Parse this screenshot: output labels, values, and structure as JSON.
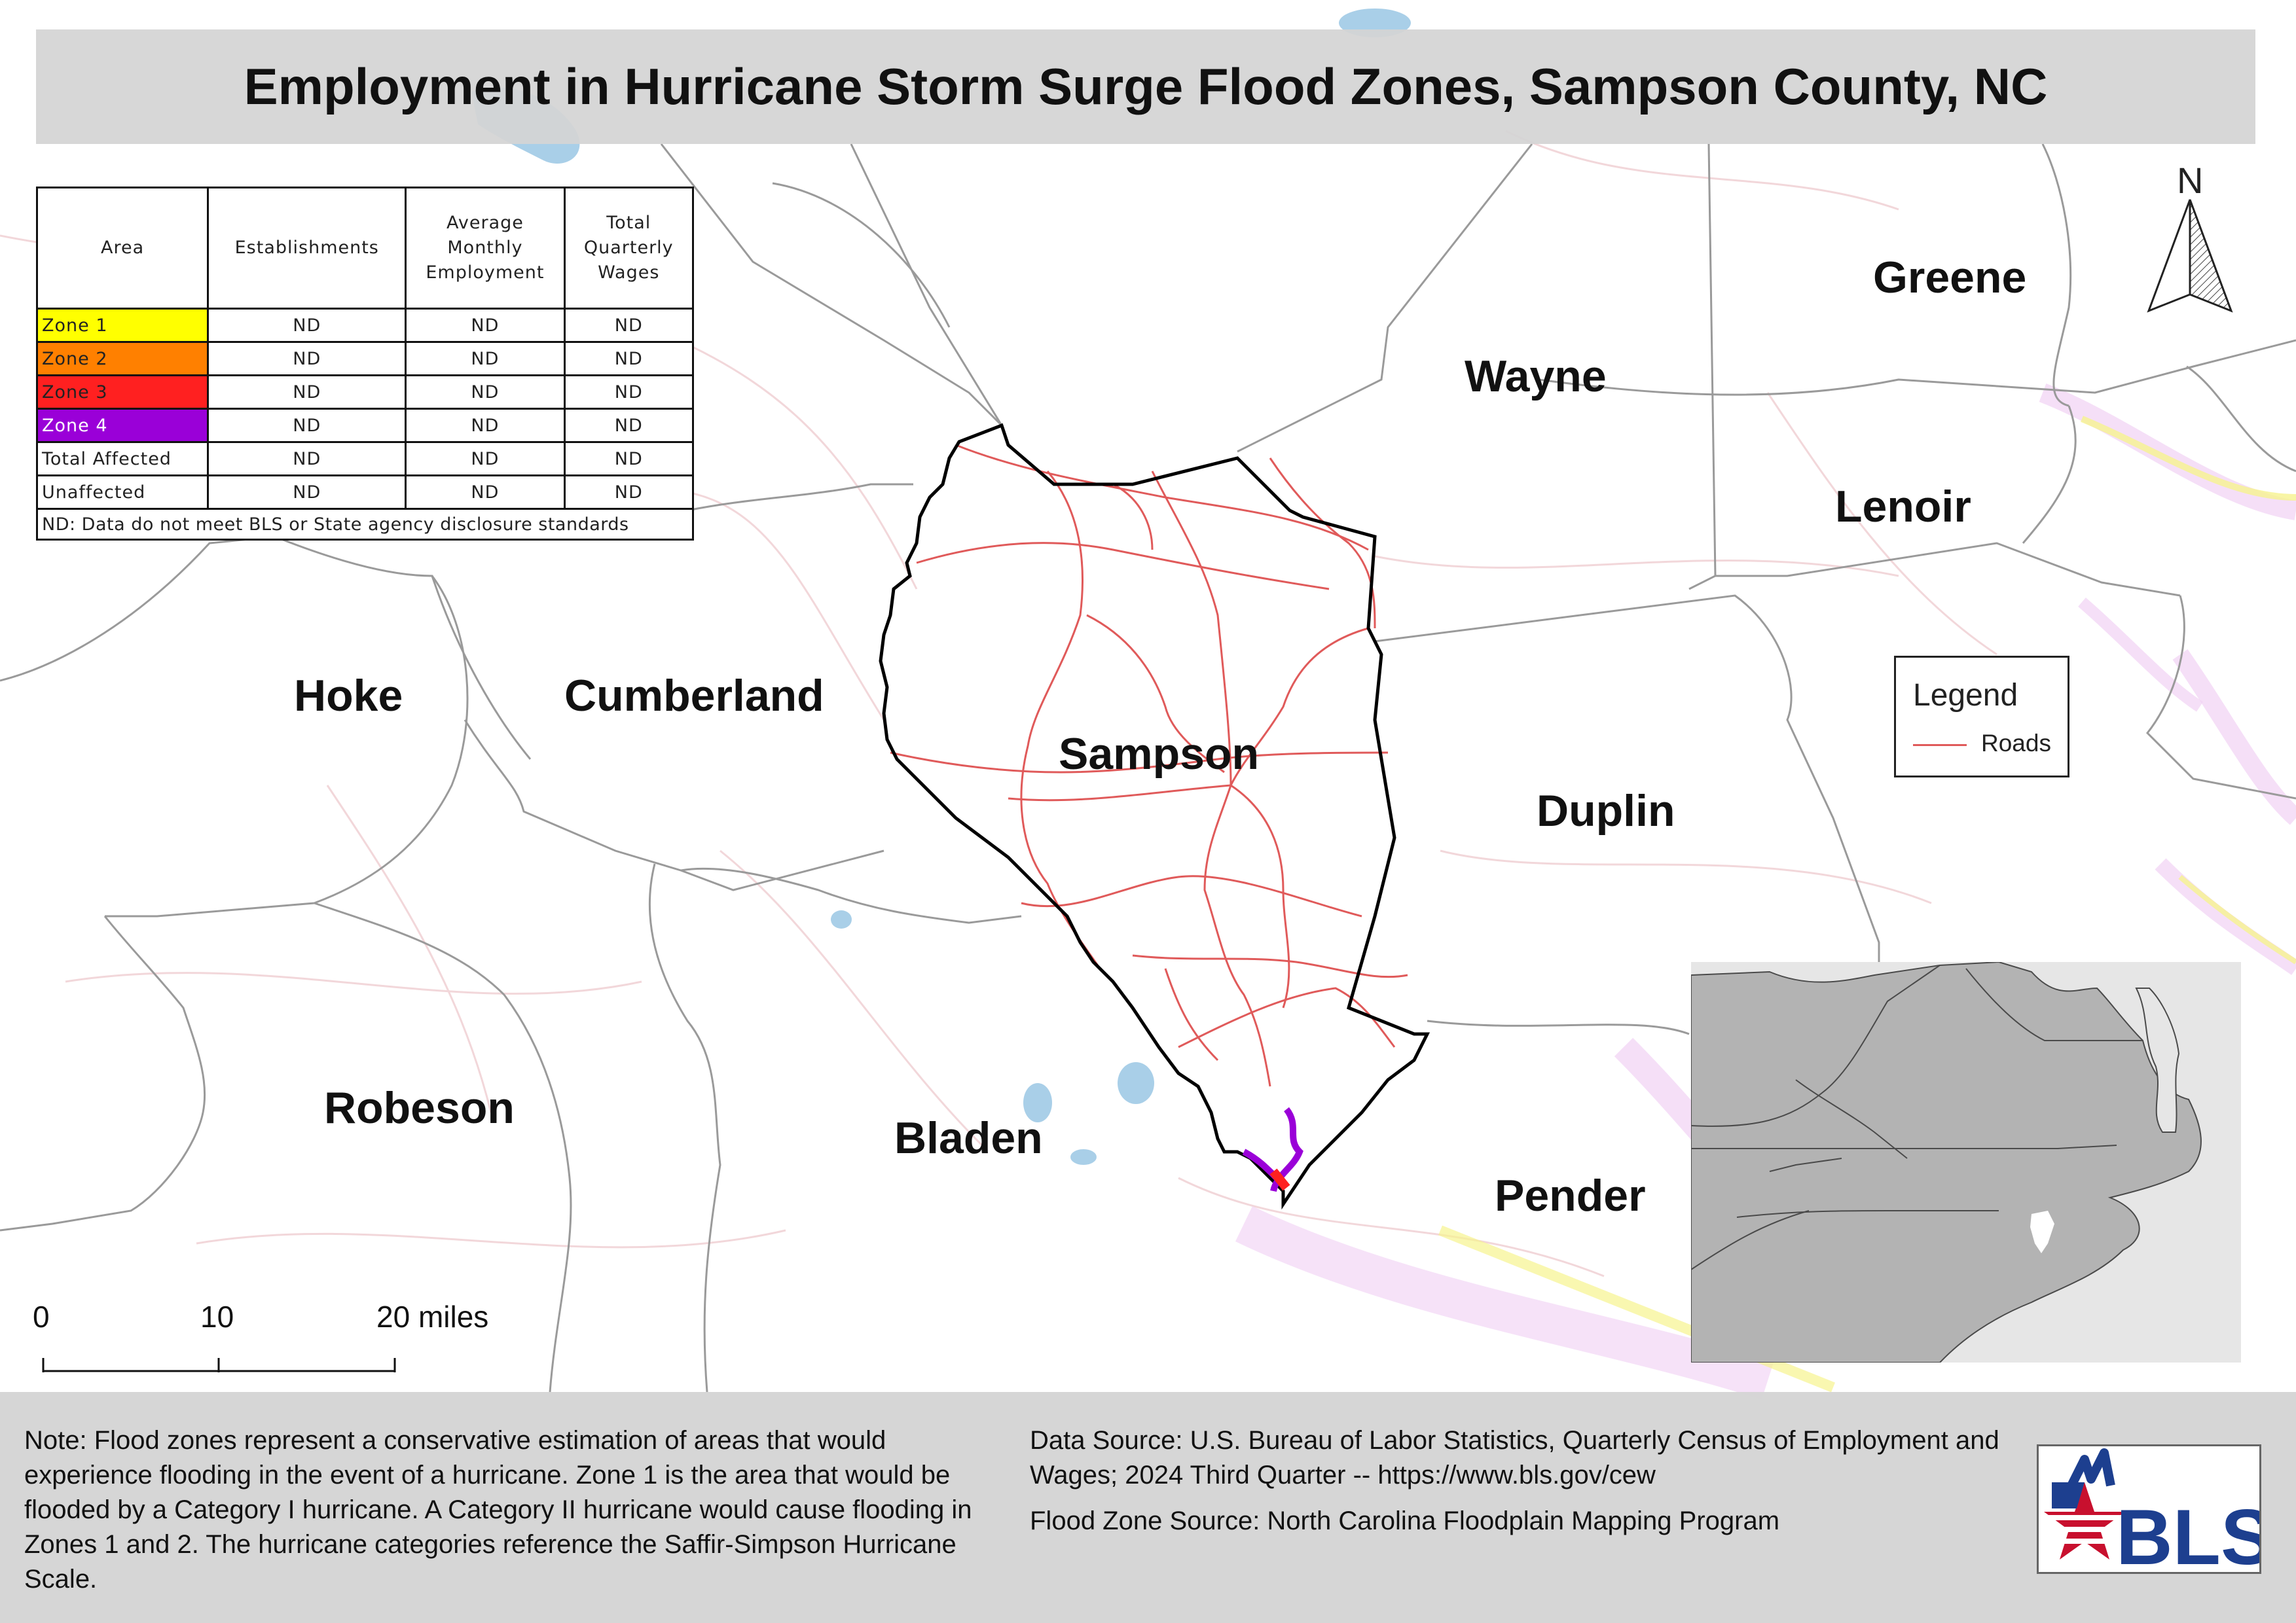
{
  "title": "Employment in Hurricane Storm Surge Flood Zones, Sampson County, NC",
  "counties": [
    {
      "name": "Greene"
    },
    {
      "name": "Wayne"
    },
    {
      "name": "Lenoir"
    },
    {
      "name": "Hoke"
    },
    {
      "name": "Cumberland"
    },
    {
      "name": "Sampson"
    },
    {
      "name": "Duplin"
    },
    {
      "name": "Robeson"
    },
    {
      "name": "Bladen"
    },
    {
      "name": "Pender"
    }
  ],
  "stats_table": {
    "headers": {
      "area": "Area",
      "establishments": "Establishments",
      "employment": [
        "Average",
        "Monthly",
        "Employment"
      ],
      "wages": [
        "Total",
        "Quarterly",
        "Wages"
      ]
    },
    "rows": [
      {
        "area": "Zone 1",
        "color": "#ffff00",
        "establishments": "ND",
        "employment": "ND",
        "wages": "ND"
      },
      {
        "area": "Zone 2",
        "color": "#ff8000",
        "establishments": "ND",
        "employment": "ND",
        "wages": "ND"
      },
      {
        "area": "Zone 3",
        "color": "#ff2020",
        "establishments": "ND",
        "employment": "ND",
        "wages": "ND"
      },
      {
        "area": "Zone 4",
        "color": "#9a00d8",
        "establishments": "ND",
        "employment": "ND",
        "wages": "ND"
      },
      {
        "area": "Total Affected",
        "color": "#ffffff",
        "establishments": "ND",
        "employment": "ND",
        "wages": "ND"
      },
      {
        "area": "Unaffected",
        "color": "#ffffff",
        "establishments": "ND",
        "employment": "ND",
        "wages": "ND"
      }
    ],
    "note": "ND: Data do not meet BLS or State agency disclosure standards"
  },
  "legend": {
    "title": "Legend",
    "roads_label": "Roads",
    "roads_color": "#e05a5a"
  },
  "north_arrow": {
    "label": "N"
  },
  "scale_bar": {
    "labels": [
      "0",
      "10",
      "20 miles"
    ]
  },
  "footer": {
    "note": "Note: Flood zones represent a conservative estimation of areas that would experience flooding in the event of a hurricane. Zone 1 is the area that would be flooded by a Category I hurricane. A Category II hurricane would cause flooding in Zones 1 and 2. The hurricane categories reference the Saffir-Simpson Hurricane Scale.",
    "data_source": "Data Source: U.S. Bureau of Labor Statistics, Quarterly Census of Employment and Wages; 2024 Third Quarter -- https://www.bls.gov/cew",
    "flood_source": "Flood Zone Source: North Carolina Floodplain Mapping Program"
  },
  "logo": {
    "text": "BLS"
  },
  "colors": {
    "county_border": "#9a9a9a",
    "sampson_border": "#000000",
    "road": "#e05a5a",
    "water": "#a9cfe8",
    "inset_state": "#b3b3b3",
    "inset_water": "#e8e8e8"
  }
}
